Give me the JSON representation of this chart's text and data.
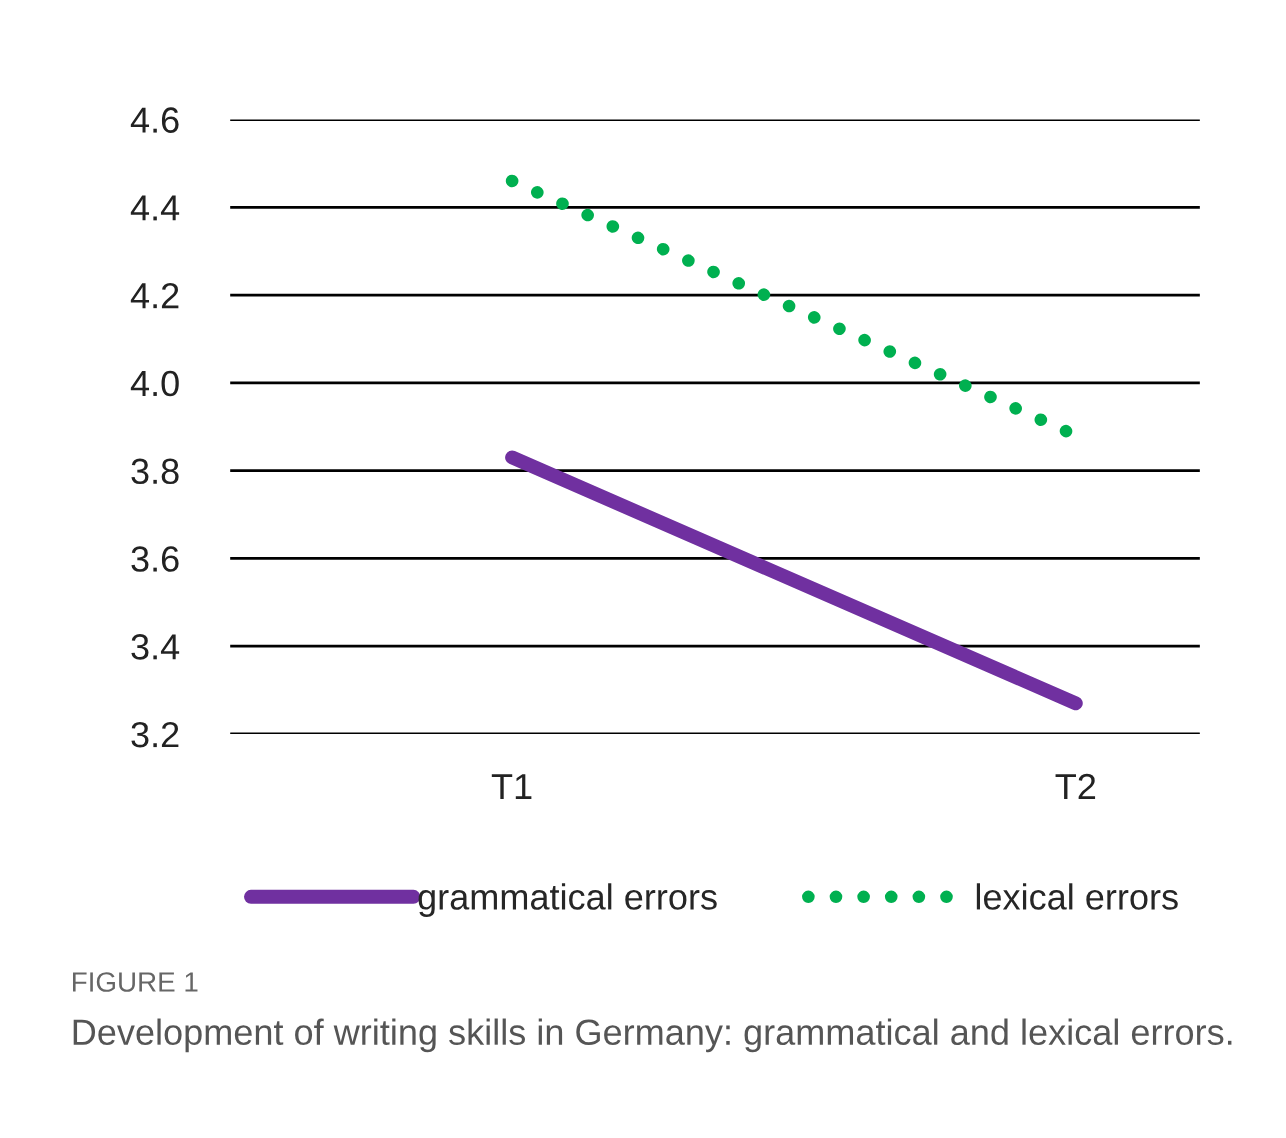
{
  "chart_data": {
    "type": "line",
    "categories": [
      "T1",
      "T2"
    ],
    "series": [
      {
        "name": "grammatical errors",
        "color": "#7030a0",
        "values": [
          3.83,
          3.27
        ],
        "line_style": "solid"
      },
      {
        "name": "lexical errors",
        "color": "#00b050",
        "values": [
          4.46,
          3.88
        ],
        "line_style": "dotted"
      }
    ],
    "ylim": [
      3.2,
      4.6
    ],
    "yticks": [
      {
        "value": 3.2,
        "label": "3.2"
      },
      {
        "value": 3.4,
        "label": "3.4"
      },
      {
        "value": 3.6,
        "label": "3.6"
      },
      {
        "value": 3.8,
        "label": "3.8"
      },
      {
        "value": 4.0,
        "label": "4.0"
      },
      {
        "value": 4.2,
        "label": "4.2"
      },
      {
        "value": 4.4,
        "label": "4.4"
      },
      {
        "value": 4.6,
        "label": "4.6"
      }
    ],
    "grid": "y",
    "legend": "bottom",
    "marker": "none",
    "annotations": [
      "FIGURE 1",
      "Development of writing skills in Germany: grammatical and lexical errors."
    ]
  }
}
